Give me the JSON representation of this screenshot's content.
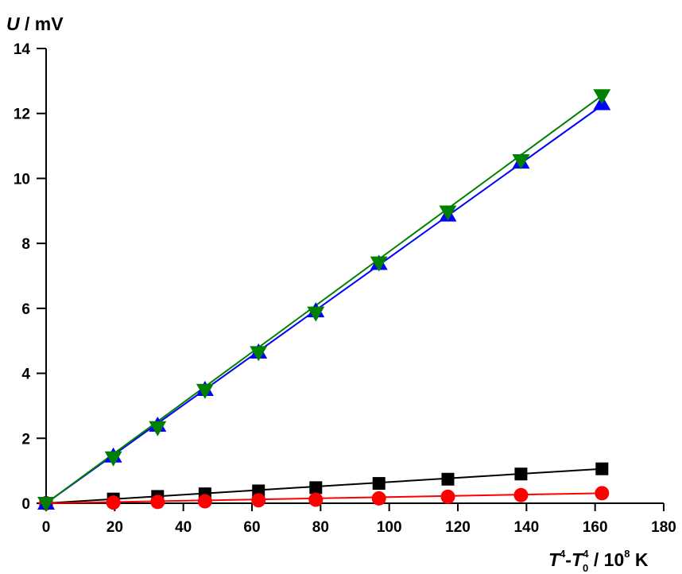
{
  "chart_data": {
    "type": "scatter",
    "x_label_parts": {
      "T": "T",
      "sup1": "4",
      "minus": "-",
      "T2": "T",
      "sub0": "0",
      "sup2": "4",
      "unit_a": " / 10",
      "sup3": "8",
      "unit_b": " K"
    },
    "y_label_parts": {
      "U": "U",
      "unit": " / mV"
    },
    "xlim": [
      0,
      180
    ],
    "ylim": [
      0,
      14
    ],
    "x_ticks": [
      "0",
      "20",
      "40",
      "60",
      "80",
      "100",
      "120",
      "140",
      "160",
      "180"
    ],
    "y_ticks": [
      "0",
      "2",
      "4",
      "6",
      "8",
      "10",
      "12",
      "14"
    ],
    "grid": false,
    "series": [
      {
        "marker": "square",
        "color": "#000000",
        "line_color": "#000000",
        "x": [
          0,
          19.6,
          32.5,
          46.3,
          61.9,
          78.6,
          97.0,
          117.1,
          138.4,
          162.0
        ],
        "y": [
          0,
          0.13,
          0.21,
          0.29,
          0.38,
          0.48,
          0.61,
          0.74,
          0.9,
          1.06
        ],
        "fit": [
          [
            0,
            0
          ],
          [
            162.0,
            1.06
          ]
        ]
      },
      {
        "marker": "circle",
        "color": "#ff0000",
        "line_color": "#ff0000",
        "x": [
          0,
          19.6,
          32.5,
          46.3,
          61.9,
          78.6,
          97.0,
          117.1,
          138.4,
          162.0
        ],
        "y": [
          0,
          0.02,
          0.04,
          0.06,
          0.09,
          0.11,
          0.15,
          0.2,
          0.25,
          0.31
        ],
        "fit": [
          [
            0,
            0
          ],
          [
            162.0,
            0.31
          ]
        ]
      },
      {
        "marker": "triangle-up",
        "color": "#0000ff",
        "line_color": "#0000ff",
        "x": [
          0,
          19.6,
          32.5,
          46.3,
          61.9,
          78.6,
          97.0,
          117.1,
          138.4,
          162.0
        ],
        "y": [
          0,
          1.45,
          2.4,
          3.5,
          4.65,
          5.92,
          7.38,
          8.87,
          10.5,
          12.3
        ],
        "fit": [
          [
            0,
            0
          ],
          [
            162.0,
            12.25
          ]
        ]
      },
      {
        "marker": "triangle-down",
        "color": "#008000",
        "line_color": "#008000",
        "x": [
          0,
          19.6,
          32.5,
          46.3,
          61.9,
          78.6,
          97.0,
          117.1,
          138.4,
          162.0
        ],
        "y": [
          0,
          1.4,
          2.33,
          3.48,
          4.64,
          5.86,
          7.4,
          8.97,
          10.55,
          12.55
        ],
        "fit": [
          [
            0,
            0
          ],
          [
            162.0,
            12.55
          ]
        ]
      }
    ]
  }
}
